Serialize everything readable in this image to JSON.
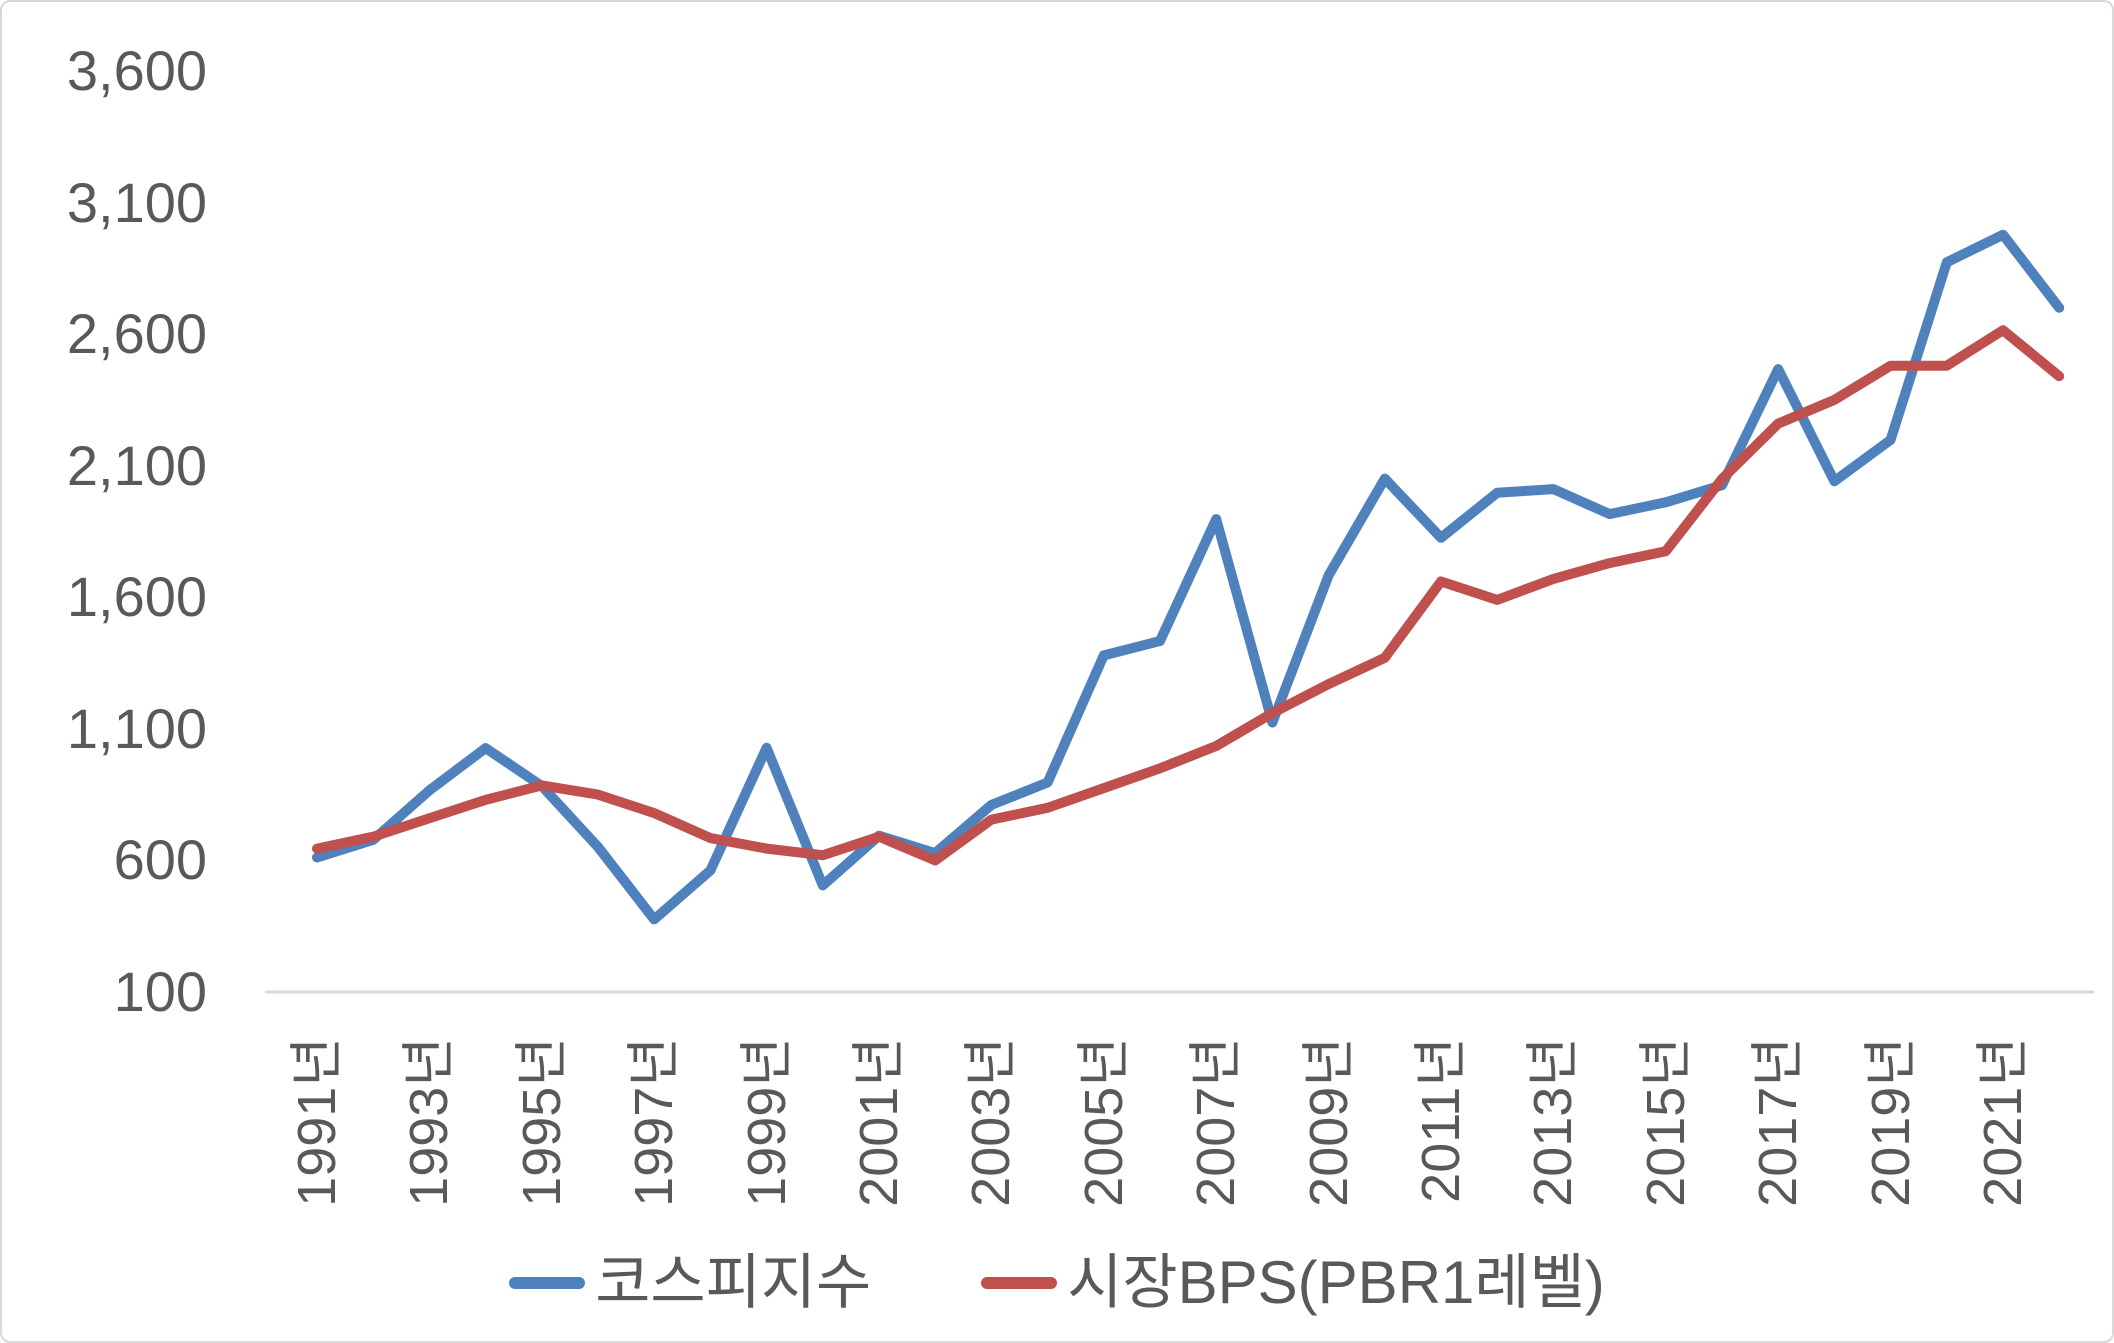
{
  "chart_data": {
    "type": "line",
    "x": [
      1991,
      1992,
      1993,
      1994,
      1995,
      1996,
      1997,
      1998,
      1999,
      2000,
      2001,
      2002,
      2003,
      2004,
      2005,
      2006,
      2007,
      2008,
      2009,
      2010,
      2011,
      2012,
      2013,
      2014,
      2015,
      2016,
      2017,
      2018,
      2019,
      2020,
      2021,
      2022
    ],
    "series": [
      {
        "name": "코스피지수",
        "color": "#4F81BD",
        "values": [
          611,
          678,
          866,
          1027,
          883,
          651,
          376,
          562,
          1028,
          505,
          694,
          628,
          811,
          896,
          1379,
          1434,
          1897,
          1124,
          1683,
          2051,
          1826,
          1997,
          2011,
          1916,
          1961,
          2026,
          2467,
          2041,
          2198,
          2873,
          2978,
          2700
        ]
      },
      {
        "name": "시장BPS(PBR1레벨)",
        "color": "#C0504D",
        "values": [
          645,
          690,
          760,
          830,
          885,
          850,
          780,
          685,
          645,
          620,
          690,
          600,
          755,
          800,
          875,
          950,
          1035,
          1160,
          1270,
          1370,
          1660,
          1590,
          1670,
          1730,
          1775,
          2050,
          2260,
          2350,
          2480,
          2480,
          2615,
          2440
        ]
      }
    ],
    "title": "",
    "xlabel": "",
    "ylabel": "",
    "ylim": [
      100,
      3600
    ],
    "ytick_interval": 500,
    "ytick_labels": [
      "3,600",
      "3,100",
      "2,600",
      "2,100",
      "1,600",
      "1,100",
      "600",
      "100"
    ],
    "ytick_values": [
      3600,
      3100,
      2600,
      2100,
      1600,
      1100,
      600,
      100
    ],
    "xtick_years": [
      1991,
      1993,
      1995,
      1997,
      1999,
      2001,
      2003,
      2005,
      2007,
      2009,
      2011,
      2013,
      2015,
      2017,
      2019,
      2021
    ],
    "xtick_labels": [
      "1991년",
      "1993년",
      "1995년",
      "1997년",
      "1999년",
      "2001년",
      "2003년",
      "2005년",
      "2007년",
      "2009년",
      "2011년",
      "2013년",
      "2015년",
      "2017년",
      "2019년",
      "2021년"
    ],
    "grid": false,
    "legend_position": "bottom",
    "axis_line_color": "#D9D9D9",
    "tick_label_color": "#595959",
    "line_width": 10
  }
}
